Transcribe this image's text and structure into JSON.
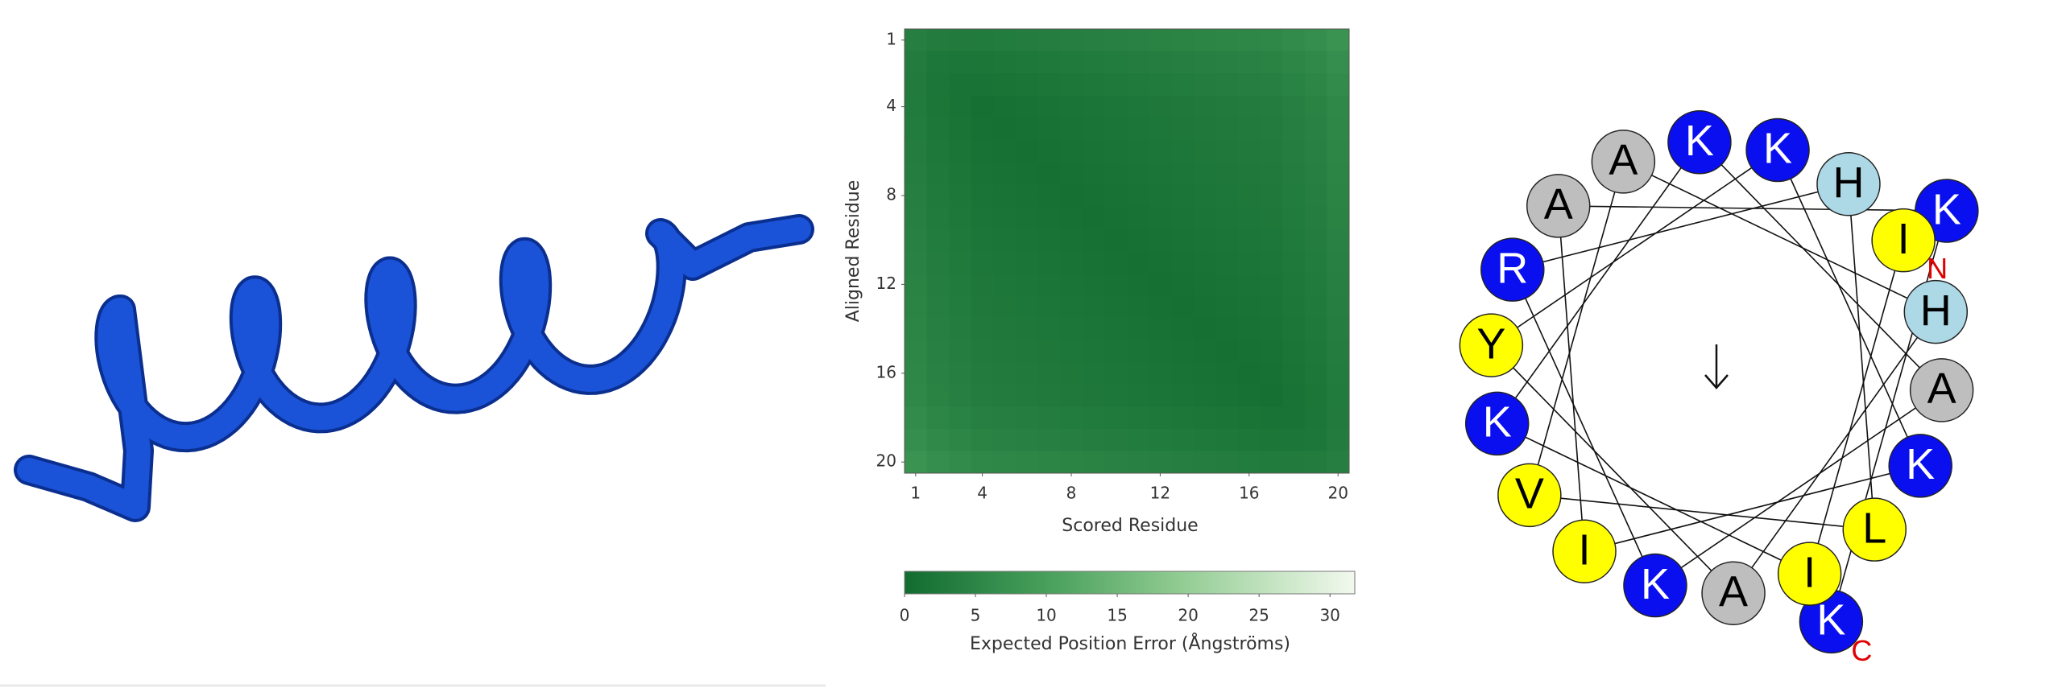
{
  "chart_data": {
    "type": "heatmap",
    "xlabel": "Scored Residue",
    "ylabel": "Aligned Residue",
    "x": [
      1,
      2,
      3,
      4,
      5,
      6,
      7,
      8,
      9,
      10,
      11,
      12,
      13,
      14,
      15,
      16,
      17,
      18,
      19,
      20
    ],
    "y": [
      1,
      2,
      3,
      4,
      5,
      6,
      7,
      8,
      9,
      10,
      11,
      12,
      13,
      14,
      15,
      16,
      17,
      18,
      19,
      20
    ],
    "xlim": [
      0.5,
      20.5
    ],
    "ylim": [
      0.5,
      20.5
    ],
    "xticks": [
      1,
      4,
      8,
      12,
      16,
      20
    ],
    "yticks": [
      1,
      4,
      8,
      12,
      16,
      20
    ],
    "values": [
      [
        3.8,
        3.2,
        3.0,
        2.9,
        3.1,
        3.3,
        3.5,
        3.7,
        3.9,
        4.1,
        4.3,
        4.5,
        4.7,
        4.9,
        5.1,
        5.3,
        5.5,
        6.0,
        6.6,
        7.6
      ],
      [
        3.2,
        2.2,
        2.0,
        1.9,
        2.1,
        2.3,
        2.5,
        2.7,
        2.9,
        3.1,
        3.3,
        3.5,
        3.7,
        3.9,
        4.1,
        4.3,
        4.5,
        5.0,
        5.6,
        6.6
      ],
      [
        3.0,
        2.0,
        1.4,
        1.3,
        1.5,
        1.7,
        1.9,
        2.1,
        2.3,
        2.5,
        2.7,
        2.9,
        3.1,
        3.3,
        3.5,
        3.7,
        3.9,
        4.4,
        5.0,
        6.0
      ],
      [
        2.9,
        1.9,
        1.3,
        0.8,
        1.0,
        1.2,
        1.4,
        1.6,
        1.8,
        2.0,
        2.2,
        2.4,
        2.6,
        2.8,
        3.0,
        3.2,
        3.4,
        3.9,
        4.5,
        5.5
      ],
      [
        3.1,
        2.1,
        1.5,
        1.0,
        0.8,
        1.0,
        1.2,
        1.4,
        1.6,
        1.8,
        2.0,
        2.2,
        2.4,
        2.6,
        2.8,
        3.0,
        3.2,
        3.7,
        4.3,
        5.3
      ],
      [
        3.3,
        2.3,
        1.7,
        1.2,
        1.0,
        0.8,
        1.0,
        1.2,
        1.4,
        1.6,
        1.8,
        2.0,
        2.2,
        2.4,
        2.6,
        2.8,
        3.0,
        3.5,
        4.1,
        5.1
      ],
      [
        3.5,
        2.5,
        1.9,
        1.4,
        1.2,
        1.0,
        0.8,
        1.0,
        1.2,
        1.4,
        1.6,
        1.8,
        2.0,
        2.2,
        2.4,
        2.6,
        2.8,
        3.3,
        3.9,
        4.9
      ],
      [
        3.7,
        2.7,
        2.1,
        1.6,
        1.4,
        1.2,
        1.0,
        0.8,
        1.0,
        1.2,
        1.4,
        1.6,
        1.8,
        2.0,
        2.2,
        2.4,
        2.6,
        3.1,
        3.7,
        4.7
      ],
      [
        3.9,
        2.9,
        2.3,
        1.8,
        1.6,
        1.4,
        1.2,
        1.0,
        0.8,
        1.0,
        1.2,
        1.4,
        1.6,
        1.8,
        2.0,
        2.2,
        2.4,
        2.9,
        3.5,
        4.5
      ],
      [
        4.1,
        3.1,
        2.5,
        2.0,
        1.8,
        1.6,
        1.4,
        1.2,
        1.0,
        0.8,
        1.0,
        1.2,
        1.4,
        1.6,
        1.8,
        2.0,
        2.2,
        2.7,
        3.3,
        4.3
      ],
      [
        4.3,
        3.3,
        2.7,
        2.2,
        2.0,
        1.8,
        1.6,
        1.4,
        1.2,
        1.0,
        0.8,
        1.0,
        1.2,
        1.4,
        1.6,
        1.8,
        2.0,
        2.5,
        3.1,
        4.1
      ],
      [
        4.5,
        3.5,
        2.9,
        2.4,
        2.2,
        2.0,
        1.8,
        1.6,
        1.4,
        1.2,
        1.0,
        0.8,
        1.0,
        1.2,
        1.4,
        1.6,
        1.8,
        2.3,
        2.9,
        3.9
      ],
      [
        4.7,
        3.7,
        3.1,
        2.6,
        2.4,
        2.2,
        2.0,
        1.8,
        1.6,
        1.4,
        1.2,
        1.0,
        0.8,
        1.0,
        1.2,
        1.4,
        1.6,
        2.1,
        2.7,
        3.7
      ],
      [
        4.9,
        3.9,
        3.3,
        2.8,
        2.6,
        2.4,
        2.2,
        2.0,
        1.8,
        1.6,
        1.4,
        1.2,
        1.0,
        0.8,
        1.0,
        1.2,
        1.4,
        1.9,
        2.5,
        3.5
      ],
      [
        5.1,
        4.1,
        3.5,
        3.0,
        2.8,
        2.6,
        2.4,
        2.2,
        2.0,
        1.8,
        1.6,
        1.4,
        1.2,
        1.0,
        0.8,
        1.0,
        1.2,
        1.7,
        2.3,
        3.3
      ],
      [
        5.3,
        4.3,
        3.7,
        3.2,
        3.0,
        2.8,
        2.6,
        2.4,
        2.2,
        2.0,
        1.8,
        1.6,
        1.4,
        1.2,
        1.0,
        0.8,
        1.0,
        1.5,
        2.1,
        3.1
      ],
      [
        5.5,
        4.5,
        3.9,
        3.4,
        3.2,
        3.0,
        2.8,
        2.6,
        2.4,
        2.2,
        2.0,
        1.8,
        1.6,
        1.4,
        1.2,
        1.0,
        0.8,
        1.3,
        1.9,
        2.9
      ],
      [
        6.0,
        5.0,
        4.4,
        3.9,
        3.7,
        3.5,
        3.3,
        3.1,
        2.9,
        2.7,
        2.5,
        2.3,
        2.1,
        1.9,
        1.7,
        1.5,
        1.3,
        1.4,
        2.0,
        3.0
      ],
      [
        6.6,
        5.6,
        5.0,
        4.5,
        4.3,
        4.1,
        3.9,
        3.7,
        3.5,
        3.3,
        3.1,
        2.9,
        2.7,
        2.5,
        2.3,
        2.1,
        1.9,
        2.0,
        2.2,
        3.2
      ],
      [
        7.6,
        6.6,
        6.0,
        5.5,
        5.3,
        5.1,
        4.9,
        4.7,
        4.5,
        4.3,
        4.1,
        3.9,
        3.7,
        3.5,
        3.3,
        3.1,
        2.9,
        3.0,
        3.2,
        3.8
      ]
    ],
    "colorbar": {
      "label": "Expected Position Error (Ångströms)",
      "lim": [
        0,
        31.75
      ],
      "ticks": [
        0,
        5,
        10,
        15,
        20,
        25,
        30
      ]
    }
  },
  "helical_wheel": {
    "residues": [
      "I",
      "I",
      "K",
      "K",
      "A",
      "K",
      "R",
      "H",
      "L",
      "V",
      "A",
      "H",
      "A",
      "Y",
      "K",
      "K",
      "I",
      "A",
      "K",
      "K"
    ],
    "colors": [
      "#ffff00",
      "#ffff00",
      "#0a0ff0",
      "#0a0ff0",
      "#bebebe",
      "#0a0ff0",
      "#0a0ff0",
      "#add8e6",
      "#ffff00",
      "#ffff00",
      "#bebebe",
      "#add8e6",
      "#bebebe",
      "#ffff00",
      "#0a0ff0",
      "#0a0ff0",
      "#ffff00",
      "#bebebe",
      "#0a0ff0",
      "#0a0ff0"
    ],
    "n_label": "N",
    "c_label": "C"
  }
}
